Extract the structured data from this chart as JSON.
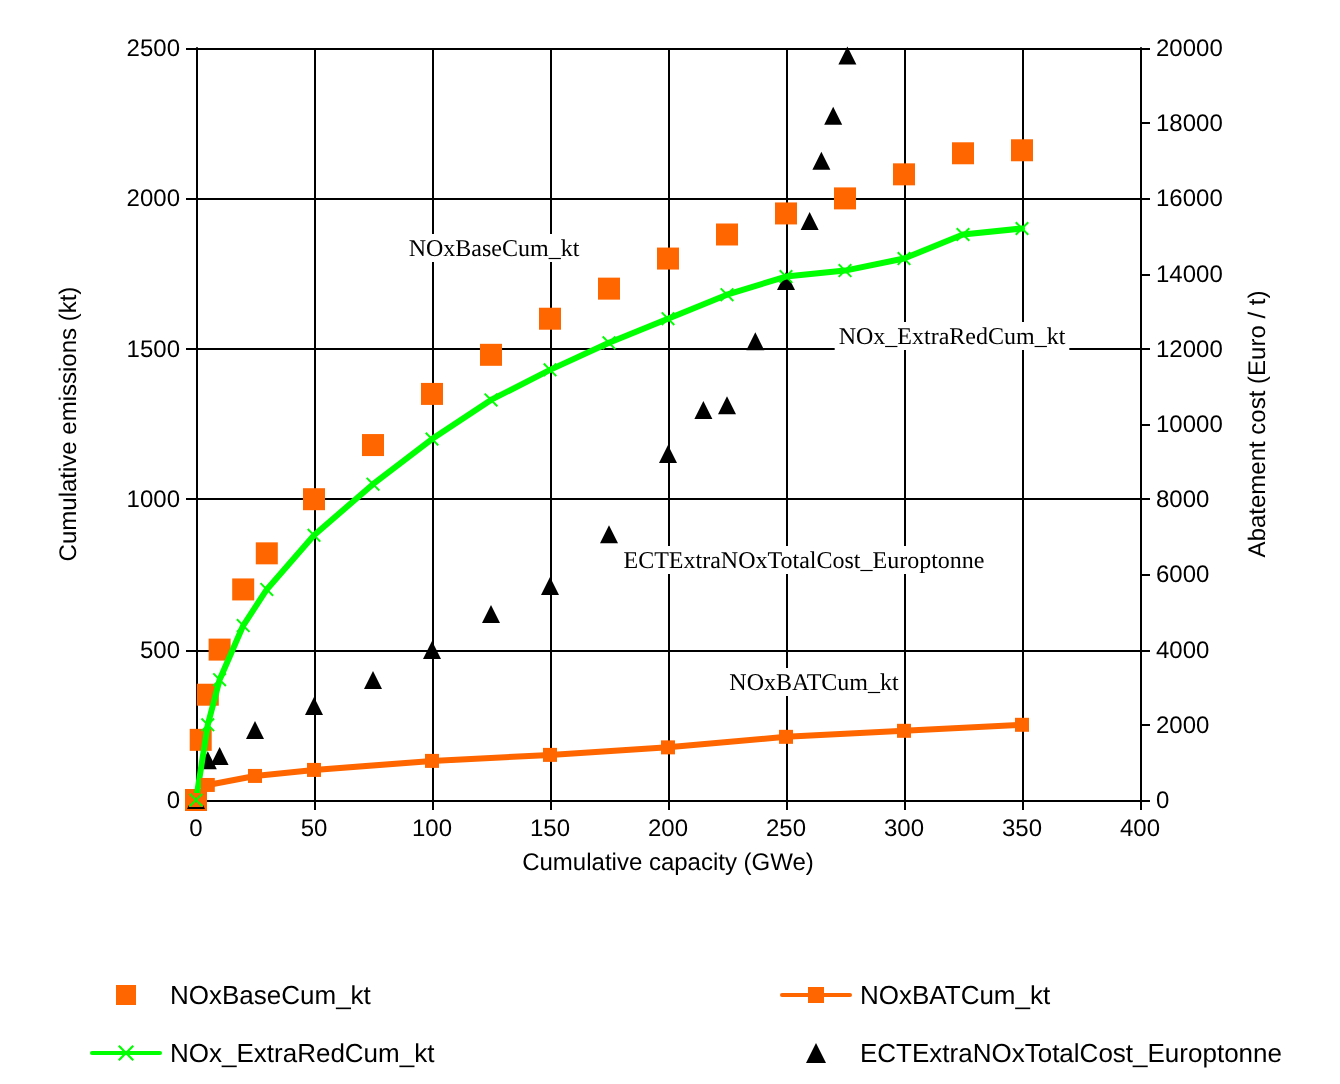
{
  "chart_data": {
    "type": "scatter",
    "xlabel": "Cumulative capacity (GWe)",
    "ylabel": "Cumulative emissions (kt)",
    "y2label": "Abatement cost (Euro / t)",
    "xlim": [
      0,
      400
    ],
    "xticks": [
      0,
      50,
      100,
      150,
      200,
      250,
      300,
      350,
      400
    ],
    "ylim": [
      0,
      2500
    ],
    "yticks": [
      0,
      500,
      1000,
      1500,
      2000,
      2500
    ],
    "y2lim": [
      0,
      20000
    ],
    "y2ticks": [
      0,
      2000,
      4000,
      6000,
      8000,
      10000,
      12000,
      14000,
      16000,
      18000,
      20000
    ],
    "grid": true,
    "legend": "bottom",
    "annotations": [
      "NOxBaseCum_kt",
      "NOx_ExtraRedCum_kt",
      "ECTExtraNOxTotalCost_Europtonne",
      "NOxBATCum_kt"
    ],
    "series": [
      {
        "name": "NOxBaseCum_kt",
        "marker": "square",
        "color": "#ff6600",
        "x": [
          0,
          2,
          5,
          10,
          20,
          30,
          50,
          75,
          100,
          125,
          150,
          175,
          200,
          225,
          250,
          275,
          300,
          325,
          350
        ],
        "values": [
          0,
          200,
          350,
          500,
          700,
          820,
          1000,
          1180,
          1350,
          1480,
          1600,
          1700,
          1800,
          1880,
          1950,
          2000,
          2080,
          2150,
          2160
        ]
      },
      {
        "name": "NOxBATCum_kt",
        "type": "line",
        "marker": "square",
        "color": "#ff6600",
        "x": [
          0,
          5,
          25,
          50,
          100,
          150,
          200,
          250,
          300,
          350
        ],
        "values": [
          0,
          50,
          80,
          100,
          130,
          150,
          175,
          210,
          230,
          250
        ]
      },
      {
        "name": "NOx_ExtraRedCum_kt",
        "type": "line",
        "marker": "cross",
        "color": "#00ff00",
        "x": [
          0,
          5,
          10,
          20,
          30,
          50,
          75,
          100,
          125,
          150,
          175,
          200,
          225,
          250,
          275,
          300,
          325,
          350
        ],
        "values": [
          0,
          250,
          400,
          580,
          700,
          880,
          1050,
          1200,
          1330,
          1430,
          1520,
          1600,
          1680,
          1740,
          1760,
          1800,
          1880,
          1900
        ]
      },
      {
        "name": "ECTExtraNOxTotalCost_Europtonne",
        "marker": "triangle",
        "color": "#000000",
        "axis": "y2",
        "x": [
          0,
          5,
          10,
          25,
          50,
          75,
          100,
          125,
          150,
          175,
          200,
          215,
          225,
          237,
          250,
          260,
          265,
          270,
          276
        ],
        "values": [
          0,
          1060,
          1170,
          1860,
          2500,
          3190,
          3990,
          4950,
          5690,
          7070,
          9200,
          10370,
          10500,
          12200,
          13800,
          15400,
          17000,
          18200,
          19800
        ]
      }
    ]
  }
}
